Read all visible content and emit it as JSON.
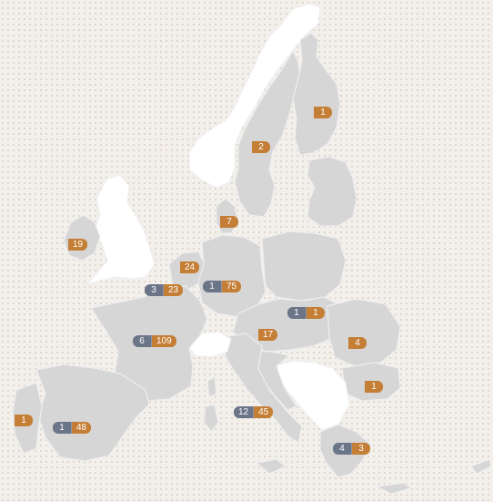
{
  "map": {
    "colors": {
      "land": "#d6d6d6",
      "highlight_land": "#ffffff",
      "background": "#f3f0ec",
      "blue": "#6b7588",
      "orange": "#c47e35"
    },
    "markers": [
      {
        "id": "finland",
        "orange": "1"
      },
      {
        "id": "sweden",
        "orange": "2"
      },
      {
        "id": "denmark",
        "orange": "7"
      },
      {
        "id": "ireland",
        "orange": "19"
      },
      {
        "id": "netherlands",
        "orange": "24"
      },
      {
        "id": "belgium",
        "blue": "3",
        "orange": "23"
      },
      {
        "id": "germany",
        "blue": "1",
        "orange": "75"
      },
      {
        "id": "slovakia-hungary",
        "blue": "1",
        "orange": "1"
      },
      {
        "id": "france",
        "blue": "6",
        "orange": "109"
      },
      {
        "id": "austria-slovenia",
        "orange": "17"
      },
      {
        "id": "romania",
        "orange": "4"
      },
      {
        "id": "bulgaria",
        "orange": "1"
      },
      {
        "id": "portugal",
        "orange": "1"
      },
      {
        "id": "spain",
        "blue": "1",
        "orange": "48"
      },
      {
        "id": "italy",
        "blue": "12",
        "orange": "45"
      },
      {
        "id": "greece",
        "blue": "4",
        "orange": "3"
      }
    ]
  }
}
